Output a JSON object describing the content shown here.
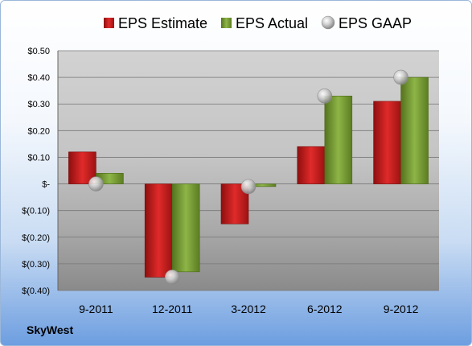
{
  "brand": "SkyWest",
  "chart_data": {
    "type": "bar",
    "categories": [
      "9-2011",
      "12-2011",
      "3-2012",
      "6-2012",
      "9-2012"
    ],
    "series": [
      {
        "name": "EPS Estimate",
        "kind": "bar",
        "color": "#cc1f1f",
        "values": [
          0.12,
          -0.35,
          -0.15,
          0.14,
          0.31
        ]
      },
      {
        "name": "EPS Actual",
        "kind": "bar",
        "color": "#7ea43a",
        "values": [
          0.04,
          -0.33,
          -0.01,
          0.33,
          0.4
        ]
      },
      {
        "name": "EPS GAAP",
        "kind": "marker",
        "color": "#b8b8b8",
        "values": [
          0.0,
          -0.35,
          -0.01,
          0.33,
          0.4
        ]
      }
    ],
    "yticks": [
      "$0.50",
      "$0.40",
      "$0.30",
      "$0.20",
      "$0.10",
      "$-",
      "$(0.10)",
      "$(0.20)",
      "$(0.30)",
      "$(0.40)"
    ],
    "ylim": [
      -0.4,
      0.5
    ],
    "grid": true,
    "legend": "top"
  }
}
